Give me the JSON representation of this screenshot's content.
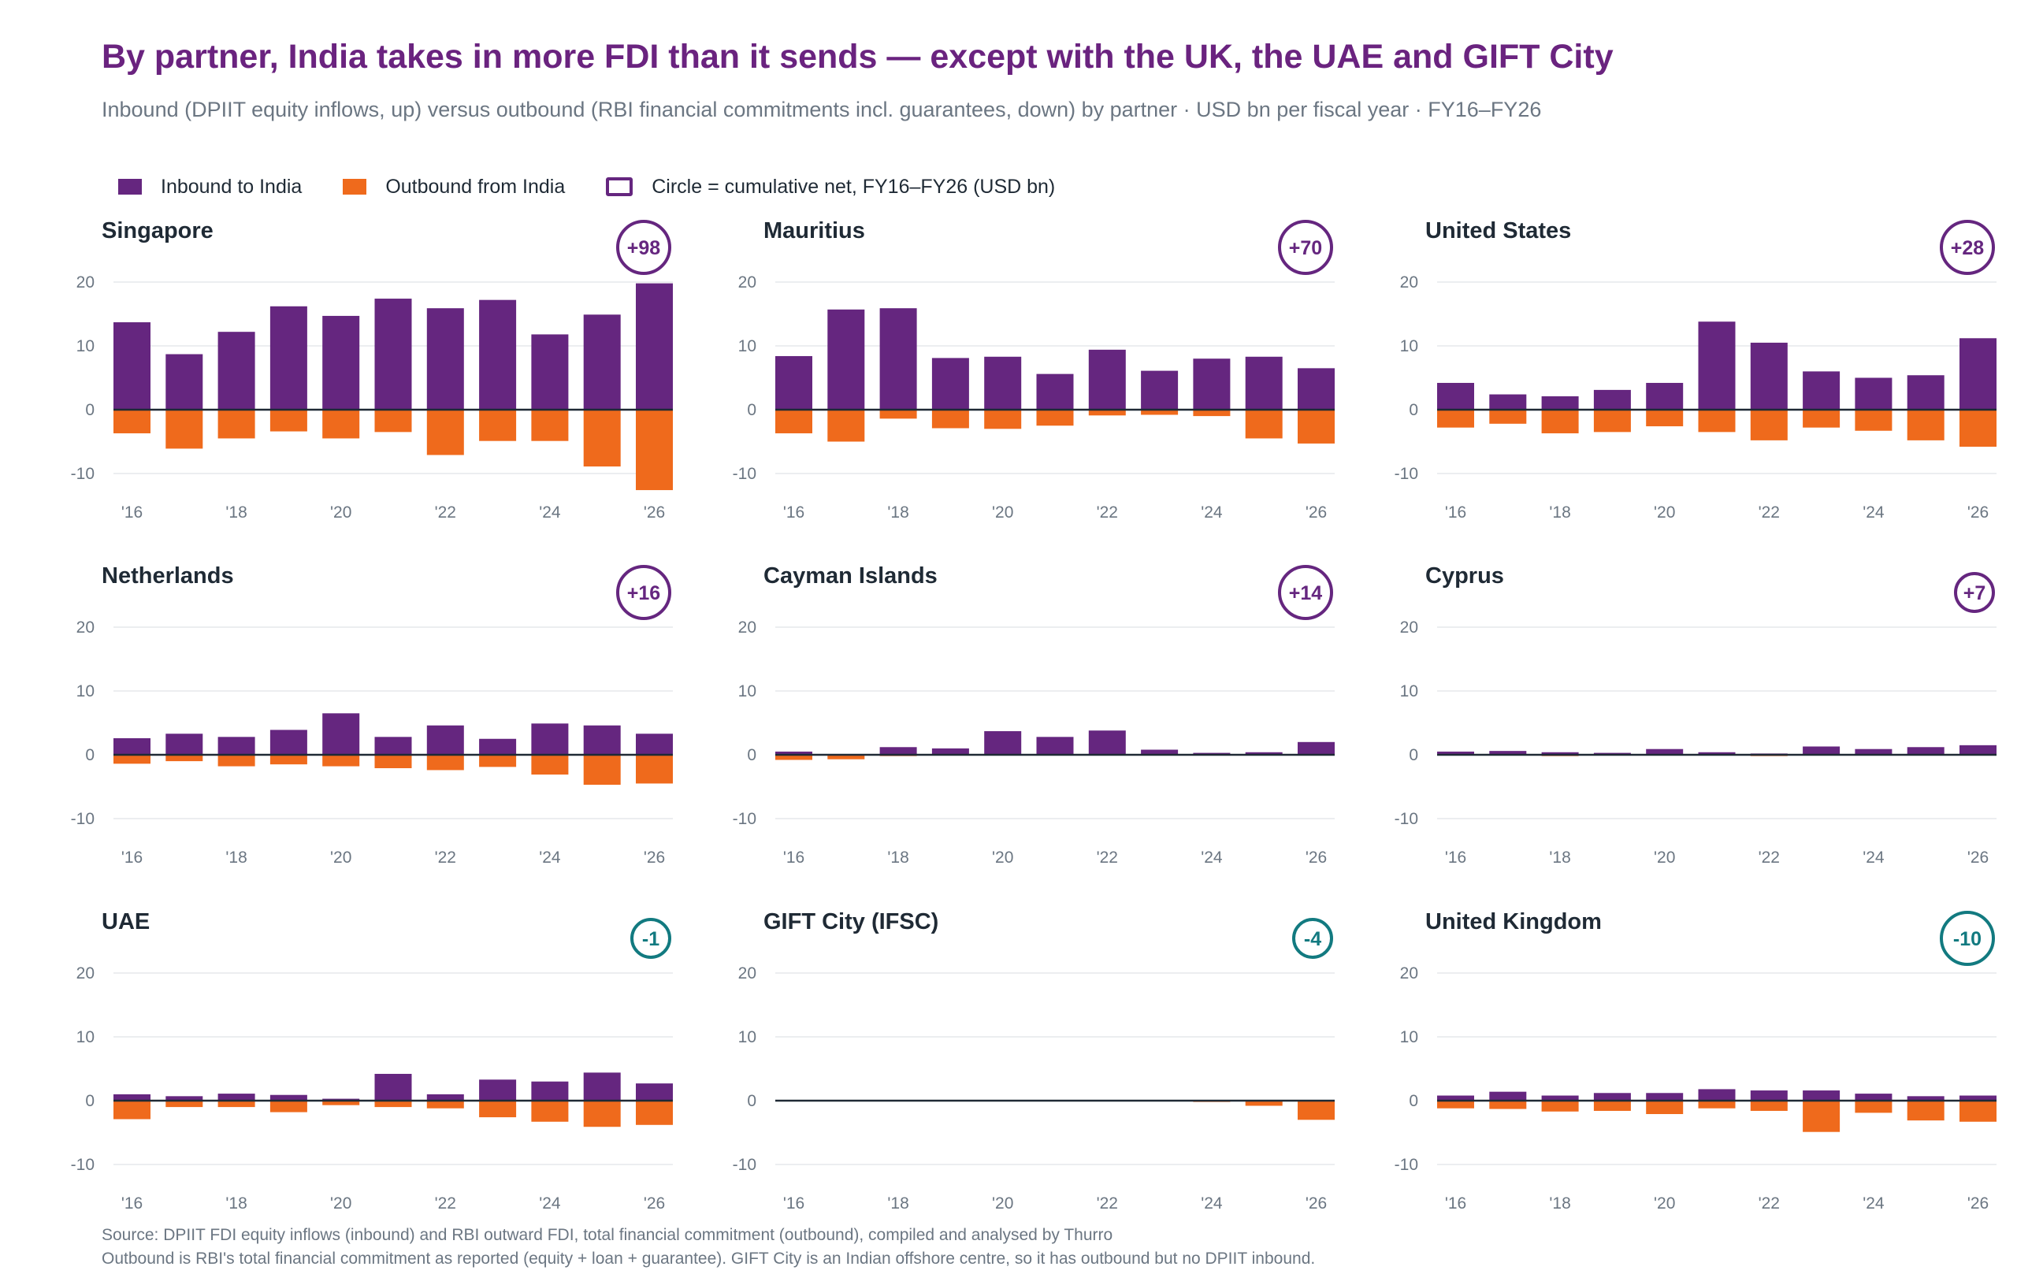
{
  "title": "By partner, India takes in more FDI than it sends — except with the UK, the UAE and GIFT City",
  "subtitle": "Inbound (DPIIT equity inflows, up) versus outbound (RBI financial commitments incl. guarantees, down) by partner  ·  USD bn per fiscal year  ·  FY16–FY26",
  "legend": {
    "inbound": "Inbound to India",
    "outbound": "Outbound from India",
    "net": "Circle = cumulative net, FY16–FY26 (USD bn)"
  },
  "colors": {
    "inbound": "#65267f",
    "outbound": "#ef6a1c",
    "net_positive": "#65267f",
    "net_negative": "#127a80",
    "zero_line": "#1f2a35",
    "grid": "#e6e8eb"
  },
  "footer": {
    "line1": "Source: DPIIT FDI equity inflows (inbound) and RBI outward FDI, total financial commitment (outbound), compiled and analysed by Thurro",
    "line2": "Outbound is RBI's total financial commitment as reported (equity + loan + guarantee). GIFT City is an Indian offshore centre, so it has outbound but no DPIIT inbound."
  },
  "chart_data": {
    "type": "bar",
    "layout": "small-multiples 3x3",
    "x": [
      "FY16",
      "FY17",
      "FY18",
      "FY19",
      "FY20",
      "FY21",
      "FY22",
      "FY23",
      "FY24",
      "FY25",
      "FY26"
    ],
    "x_tick_labels": [
      "'16",
      "'18",
      "'20",
      "'22",
      "'24",
      "'26"
    ],
    "y_ticks": [
      -10,
      0,
      10,
      20
    ],
    "ylim": [
      -13,
      21
    ],
    "grid": true,
    "unit": "USD bn",
    "panels": [
      {
        "title": "Singapore",
        "net": "+98",
        "inbound": [
          13.7,
          8.7,
          12.2,
          16.2,
          14.7,
          17.4,
          15.9,
          17.2,
          11.8,
          14.9,
          19.8
        ],
        "outbound": [
          -3.7,
          -6.1,
          -4.5,
          -3.4,
          -4.5,
          -3.5,
          -7.1,
          -4.9,
          -4.9,
          -8.9,
          -12.6
        ]
      },
      {
        "title": "Mauritius",
        "net": "+70",
        "inbound": [
          8.4,
          15.7,
          15.9,
          8.1,
          8.3,
          5.6,
          9.4,
          6.1,
          8.0,
          8.3,
          6.5
        ],
        "outbound": [
          -3.7,
          -5.0,
          -1.4,
          -2.9,
          -3.0,
          -2.5,
          -0.9,
          -0.8,
          -1.0,
          -4.5,
          -5.3
        ]
      },
      {
        "title": "United States",
        "net": "+28",
        "inbound": [
          4.2,
          2.4,
          2.1,
          3.1,
          4.2,
          13.8,
          10.5,
          6.0,
          5.0,
          5.4,
          11.2
        ],
        "outbound": [
          -2.8,
          -2.2,
          -3.7,
          -3.5,
          -2.6,
          -3.5,
          -4.8,
          -2.8,
          -3.3,
          -4.8,
          -5.8
        ]
      },
      {
        "title": "Netherlands",
        "net": "+16",
        "inbound": [
          2.6,
          3.3,
          2.8,
          3.9,
          6.5,
          2.8,
          4.6,
          2.5,
          4.9,
          4.6,
          3.3
        ],
        "outbound": [
          -1.4,
          -1.0,
          -1.8,
          -1.5,
          -1.8,
          -2.1,
          -2.4,
          -1.9,
          -3.1,
          -4.7,
          -4.5
        ]
      },
      {
        "title": "Cayman Islands",
        "net": "+14",
        "inbound": [
          0.5,
          0.1,
          1.2,
          1.0,
          3.7,
          2.8,
          3.8,
          0.8,
          0.3,
          0.4,
          2.0
        ],
        "outbound": [
          -0.8,
          -0.7,
          -0.2,
          -0.1,
          -0.1,
          -0.1,
          -0.1,
          -0.1,
          -0.1,
          -0.1,
          -0.1
        ]
      },
      {
        "title": "Cyprus",
        "net": "+7",
        "inbound": [
          0.5,
          0.6,
          0.4,
          0.3,
          0.9,
          0.4,
          0.2,
          1.3,
          0.9,
          1.2,
          1.5
        ],
        "outbound": [
          -0.1,
          -0.1,
          -0.2,
          -0.1,
          -0.1,
          -0.1,
          -0.2,
          -0.1,
          -0.1,
          -0.1,
          -0.1
        ]
      },
      {
        "title": "UAE",
        "net": "-1",
        "inbound": [
          1.0,
          0.7,
          1.1,
          0.9,
          0.3,
          4.2,
          1.0,
          3.3,
          3.0,
          4.4,
          2.7
        ],
        "outbound": [
          -2.9,
          -1.0,
          -1.0,
          -1.8,
          -0.7,
          -1.0,
          -1.2,
          -2.6,
          -3.3,
          -4.1,
          -3.8
        ]
      },
      {
        "title": "GIFT City (IFSC)",
        "net": "-4",
        "inbound": [
          0,
          0,
          0,
          0,
          0,
          0,
          0,
          0,
          0,
          0,
          0
        ],
        "outbound": [
          0,
          0,
          0,
          0,
          0,
          0,
          0,
          0,
          -0.2,
          -0.8,
          -3.0
        ]
      },
      {
        "title": "United Kingdom",
        "net": "-10",
        "inbound": [
          0.8,
          1.4,
          0.8,
          1.2,
          1.2,
          1.8,
          1.6,
          1.6,
          1.1,
          0.7,
          0.8
        ],
        "outbound": [
          -1.2,
          -1.3,
          -1.7,
          -1.6,
          -2.1,
          -1.2,
          -1.6,
          -4.9,
          -1.9,
          -3.1,
          -3.3
        ]
      }
    ]
  }
}
